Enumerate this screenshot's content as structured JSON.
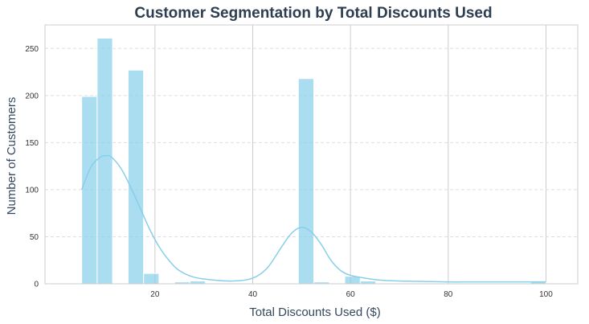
{
  "chart_data": {
    "type": "bar",
    "title": "Customer Segmentation by Total Discounts Used",
    "xlabel": "Total Discounts Used ($)",
    "ylabel": "Number of Customers",
    "xlim": [
      -2.5,
      106.5
    ],
    "ylim": [
      0,
      275
    ],
    "xticks": [
      20,
      40,
      60,
      80,
      100
    ],
    "yticks": [
      0,
      50,
      100,
      150,
      200,
      250
    ],
    "grid": true,
    "colors": {
      "bar": "#87ceeb",
      "kde": "#87ceeb",
      "title": "#2c3e50",
      "axis_label": "#34495e",
      "grid": "#cccccc"
    },
    "bins": [
      {
        "x0": 5.0,
        "x1": 8.17,
        "count": 199
      },
      {
        "x0": 8.17,
        "x1": 11.33,
        "count": 261
      },
      {
        "x0": 11.33,
        "x1": 14.5,
        "count": 0
      },
      {
        "x0": 14.5,
        "x1": 17.67,
        "count": 227
      },
      {
        "x0": 17.67,
        "x1": 20.83,
        "count": 11
      },
      {
        "x0": 20.83,
        "x1": 24.0,
        "count": 0
      },
      {
        "x0": 24.0,
        "x1": 27.17,
        "count": 2
      },
      {
        "x0": 27.17,
        "x1": 30.33,
        "count": 3
      },
      {
        "x0": 30.33,
        "x1": 33.5,
        "count": 0
      },
      {
        "x0": 33.5,
        "x1": 36.67,
        "count": 0
      },
      {
        "x0": 36.67,
        "x1": 39.83,
        "count": 0
      },
      {
        "x0": 39.83,
        "x1": 43.0,
        "count": 0
      },
      {
        "x0": 43.0,
        "x1": 46.17,
        "count": 0
      },
      {
        "x0": 46.17,
        "x1": 49.33,
        "count": 0
      },
      {
        "x0": 49.33,
        "x1": 52.5,
        "count": 218
      },
      {
        "x0": 52.5,
        "x1": 55.67,
        "count": 2
      },
      {
        "x0": 55.67,
        "x1": 58.83,
        "count": 0
      },
      {
        "x0": 58.83,
        "x1": 62.0,
        "count": 8
      },
      {
        "x0": 62.0,
        "x1": 65.17,
        "count": 3
      },
      {
        "x0": 65.17,
        "x1": 68.33,
        "count": 0
      },
      {
        "x0": 68.33,
        "x1": 71.5,
        "count": 0
      },
      {
        "x0": 71.5,
        "x1": 74.67,
        "count": 0
      },
      {
        "x0": 74.67,
        "x1": 77.83,
        "count": 0
      },
      {
        "x0": 77.83,
        "x1": 81.0,
        "count": 0
      },
      {
        "x0": 81.0,
        "x1": 84.17,
        "count": 0
      },
      {
        "x0": 84.17,
        "x1": 87.33,
        "count": 0
      },
      {
        "x0": 87.33,
        "x1": 90.5,
        "count": 0
      },
      {
        "x0": 90.5,
        "x1": 93.67,
        "count": 0
      },
      {
        "x0": 93.67,
        "x1": 96.83,
        "count": 0
      },
      {
        "x0": 96.83,
        "x1": 100.0,
        "count": 2
      }
    ],
    "kde": {
      "x": [
        5,
        7,
        9,
        10,
        11,
        13,
        15,
        17,
        19,
        21,
        23,
        25,
        28,
        32,
        36,
        40,
        43,
        46,
        48,
        50,
        52,
        54,
        56,
        58,
        60,
        63,
        66,
        70,
        75,
        80,
        85,
        90,
        95,
        100
      ],
      "y": [
        100,
        125,
        135,
        136,
        135,
        123,
        103,
        80,
        57,
        38,
        24,
        14,
        7,
        4,
        3,
        6,
        17,
        40,
        54,
        60,
        55,
        42,
        25,
        14,
        9,
        6,
        4,
        3,
        2.5,
        2,
        2,
        2,
        2,
        2
      ]
    }
  }
}
